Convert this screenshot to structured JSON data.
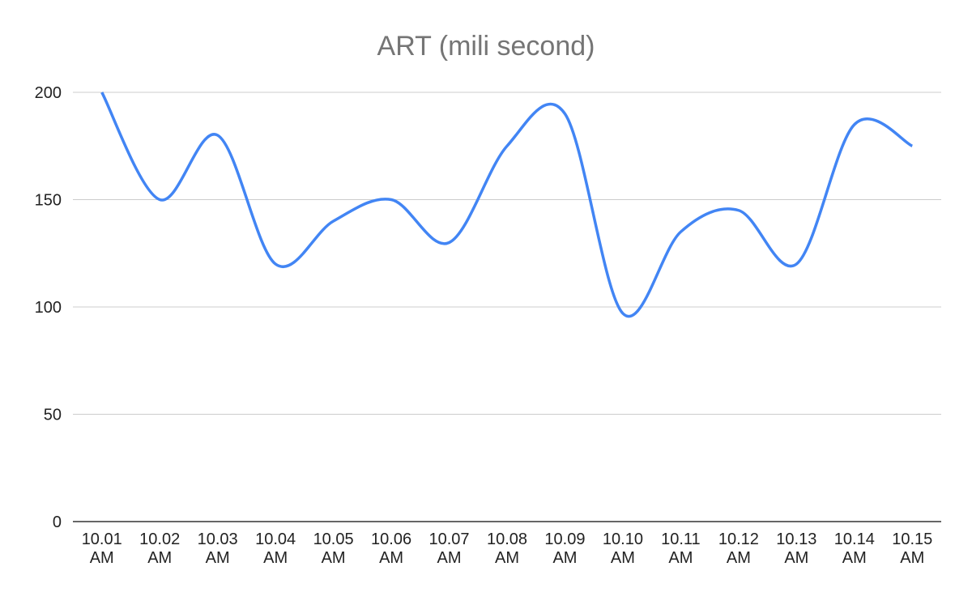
{
  "chart_data": {
    "type": "line",
    "title": "ART (mili second)",
    "xlabel": "",
    "ylabel": "",
    "categories": [
      "10.01 AM",
      "10.02 AM",
      "10.03 AM",
      "10.04 AM",
      "10.05 AM",
      "10.06 AM",
      "10.07 AM",
      "10.08 AM",
      "10.09 AM",
      "10.10 AM",
      "10.11 AM",
      "10.12 AM",
      "10.13 AM",
      "10.14 AM",
      "10.15 AM"
    ],
    "series": [
      {
        "values": [
          200,
          150,
          180,
          120,
          140,
          150,
          130,
          175,
          190,
          97,
          135,
          145,
          120,
          185,
          175
        ]
      }
    ],
    "ylim": [
      0,
      200
    ],
    "yticks": [
      0,
      50,
      100,
      150,
      200
    ],
    "grid": true,
    "smooth": true,
    "legend": "none",
    "colors": {
      "line": "#4285f4",
      "grid": "#cccccc",
      "axis": "#333333",
      "title": "#757575"
    }
  }
}
